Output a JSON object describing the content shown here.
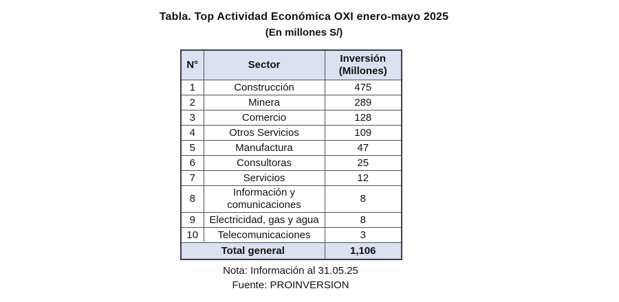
{
  "title": "Tabla. Top Actividad Económica OXI enero-mayo 2025",
  "subtitle": "(En millones S/)",
  "chart_data": {
    "type": "table",
    "title": "Tabla. Top Actividad Económica OXI enero-mayo 2025",
    "subtitle": "(En millones S/)",
    "columns": [
      "N°",
      "Sector",
      "Inversión (Millones)"
    ],
    "rows": [
      {
        "n": "1",
        "sector": "Construcción",
        "inversion": "475"
      },
      {
        "n": "2",
        "sector": "Minera",
        "inversion": "289"
      },
      {
        "n": "3",
        "sector": "Comercio",
        "inversion": "128"
      },
      {
        "n": "4",
        "sector": "Otros Servicios",
        "inversion": "109"
      },
      {
        "n": "5",
        "sector": "Manufactura",
        "inversion": "47"
      },
      {
        "n": "6",
        "sector": "Consultoras",
        "inversion": "25"
      },
      {
        "n": "7",
        "sector": "Servicios",
        "inversion": "12"
      },
      {
        "n": "8",
        "sector": "Información y comunicaciones",
        "inversion": "8"
      },
      {
        "n": "9",
        "sector": "Electricidad, gas y agua",
        "inversion": "8"
      },
      {
        "n": "10",
        "sector": "Telecomunicaciones",
        "inversion": "3"
      }
    ],
    "total": {
      "label": "Total general",
      "value": "1,106"
    }
  },
  "notes": {
    "nota": "Nota: Información al 31.05.25",
    "fuente": "Fuente: PROINVERSION"
  },
  "colors": {
    "header_bg": "#dbe1f0",
    "border": "#4d5159",
    "text": "#111111"
  }
}
